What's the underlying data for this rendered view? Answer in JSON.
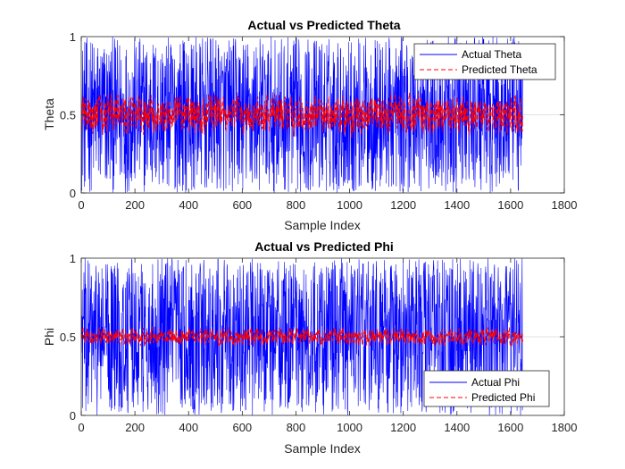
{
  "chart_data": [
    {
      "type": "line",
      "title": "Actual vs Predicted Theta",
      "xlabel": "Sample Index",
      "ylabel": "Theta",
      "xlim": [
        0,
        1800
      ],
      "ylim": [
        0,
        1
      ],
      "xticks": [
        "0",
        "200",
        "400",
        "600",
        "800",
        "1000",
        "1200",
        "1400",
        "1600",
        "1800"
      ],
      "yticks": [
        "0",
        "0.5",
        "1"
      ],
      "n_samples": 1645,
      "grid": false,
      "legend_position": "top-right",
      "series": [
        {
          "name": "Actual Theta",
          "color": "#0000ff",
          "style": "solid",
          "summary": {
            "min": 0,
            "max": 1,
            "mean": 0.5
          }
        },
        {
          "name": "Predicted Theta",
          "color": "#ff0000",
          "style": "dashed",
          "summary": {
            "min": 0.35,
            "max": 0.67,
            "mean": 0.5
          }
        }
      ]
    },
    {
      "type": "line",
      "title": "Actual vs Predicted Phi",
      "xlabel": "Sample Index",
      "ylabel": "Phi",
      "xlim": [
        0,
        1800
      ],
      "ylim": [
        0,
        1
      ],
      "xticks": [
        "0",
        "200",
        "400",
        "600",
        "800",
        "1000",
        "1200",
        "1400",
        "1600",
        "1800"
      ],
      "yticks": [
        "0",
        "0.5",
        "1"
      ],
      "n_samples": 1645,
      "grid": false,
      "legend_position": "bottom-right",
      "series": [
        {
          "name": "Actual Phi",
          "color": "#0000ff",
          "style": "solid",
          "summary": {
            "min": 0,
            "max": 1,
            "mean": 0.5
          }
        },
        {
          "name": "Predicted Phi",
          "color": "#ff0000",
          "style": "dashed",
          "summary": {
            "min": 0.43,
            "max": 0.57,
            "mean": 0.5
          }
        }
      ]
    }
  ]
}
